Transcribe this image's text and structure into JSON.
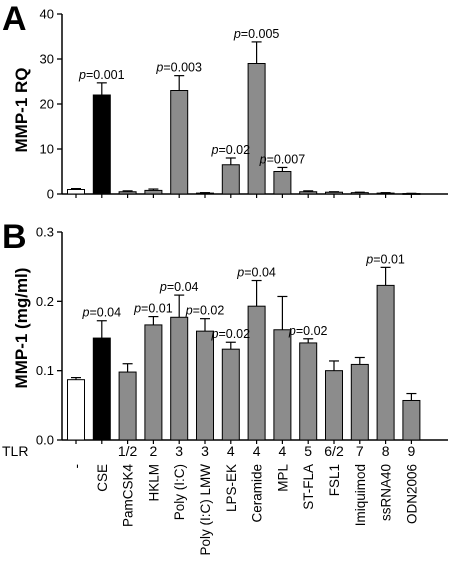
{
  "panels": [
    {
      "letter": "A",
      "ylabel": "MMP-1 RQ",
      "ylim": [
        0,
        40
      ],
      "yticks": [
        0,
        10,
        20,
        30,
        40
      ]
    },
    {
      "letter": "B",
      "ylabel": "MMP-1 (mg/ml)",
      "ylim": [
        0,
        0.3
      ],
      "yticks": [
        "0.0",
        "0.1",
        "0.2",
        "0.3"
      ]
    }
  ],
  "tlr_row_label": "TLR",
  "tlr_values": [
    "",
    "",
    "1/2",
    "2",
    "3",
    "3",
    "4",
    "4",
    "4",
    "5",
    "6/2",
    "7",
    "8",
    "9"
  ],
  "categories": [
    "-",
    "CSE",
    "PamCSK4",
    "HKLM",
    "Poly (I:C)",
    "Poly (I:C) LMW",
    "LPS-EK",
    "Ceramide",
    "MPL",
    "ST-FLA",
    "FSL1",
    "Imiquimod",
    "ssRNA40",
    "ODN2006"
  ],
  "chart_data": [
    {
      "type": "bar",
      "panel": "A",
      "categories": [
        "-",
        "CSE",
        "PamCSK4",
        "HKLM",
        "Poly (I:C)",
        "Poly (I:C) LMW",
        "LPS-EK",
        "Ceramide",
        "MPL",
        "ST-FLA",
        "FSL1",
        "Imiquimod",
        "ssRNA40",
        "ODN2006"
      ],
      "values": [
        1.0,
        22.0,
        0.5,
        0.8,
        23.0,
        0.2,
        6.5,
        29.0,
        5.0,
        0.5,
        0.4,
        0.3,
        0.2,
        0.1
      ],
      "errors": [
        0.2,
        2.7,
        0.2,
        0.3,
        3.3,
        0.1,
        1.5,
        4.8,
        0.9,
        0.2,
        0.1,
        0.1,
        0.1,
        0.05
      ],
      "colors": [
        "#ffffff",
        "#000000",
        "#8c8c8c",
        "#8c8c8c",
        "#8c8c8c",
        "#8c8c8c",
        "#8c8c8c",
        "#8c8c8c",
        "#8c8c8c",
        "#8c8c8c",
        "#8c8c8c",
        "#8c8c8c",
        "#8c8c8c",
        "#8c8c8c"
      ],
      "annotations": [
        {
          "index": 1,
          "text": "p=0.001"
        },
        {
          "index": 4,
          "text": "p=0.003"
        },
        {
          "index": 6,
          "text": "p=0.02"
        },
        {
          "index": 7,
          "text": "p=0.005"
        },
        {
          "index": 8,
          "text": "p=0.007"
        }
      ],
      "ylabel": "MMP-1 RQ",
      "ylim": [
        0,
        40
      ]
    },
    {
      "type": "bar",
      "panel": "B",
      "categories": [
        "-",
        "CSE",
        "PamCSK4",
        "HKLM",
        "Poly (I:C)",
        "Poly (I:C) LMW",
        "LPS-EK",
        "Ceramide",
        "MPL",
        "ST-FLA",
        "FSL1",
        "Imiquimod",
        "ssRNA40",
        "ODN2006"
      ],
      "values": [
        0.087,
        0.147,
        0.098,
        0.166,
        0.177,
        0.157,
        0.131,
        0.193,
        0.159,
        0.14,
        0.1,
        0.109,
        0.223,
        0.057
      ],
      "errors": [
        0.003,
        0.025,
        0.012,
        0.012,
        0.032,
        0.018,
        0.01,
        0.037,
        0.048,
        0.006,
        0.014,
        0.01,
        0.026,
        0.01
      ],
      "colors": [
        "#ffffff",
        "#000000",
        "#8c8c8c",
        "#8c8c8c",
        "#8c8c8c",
        "#8c8c8c",
        "#8c8c8c",
        "#8c8c8c",
        "#8c8c8c",
        "#8c8c8c",
        "#8c8c8c",
        "#8c8c8c",
        "#8c8c8c",
        "#8c8c8c"
      ],
      "annotations": [
        {
          "index": 1,
          "text": "p=0.04"
        },
        {
          "index": 3,
          "text": "p=0.01"
        },
        {
          "index": 4,
          "text": "p=0.04"
        },
        {
          "index": 5,
          "text": "p=0.02"
        },
        {
          "index": 6,
          "text": "p=0.02"
        },
        {
          "index": 7,
          "text": "p=0.04"
        },
        {
          "index": 9,
          "text": "p=0.02"
        },
        {
          "index": 12,
          "text": "p=0.01"
        }
      ],
      "ylabel": "MMP-1 (mg/ml)",
      "ylim": [
        0,
        0.3
      ]
    }
  ]
}
